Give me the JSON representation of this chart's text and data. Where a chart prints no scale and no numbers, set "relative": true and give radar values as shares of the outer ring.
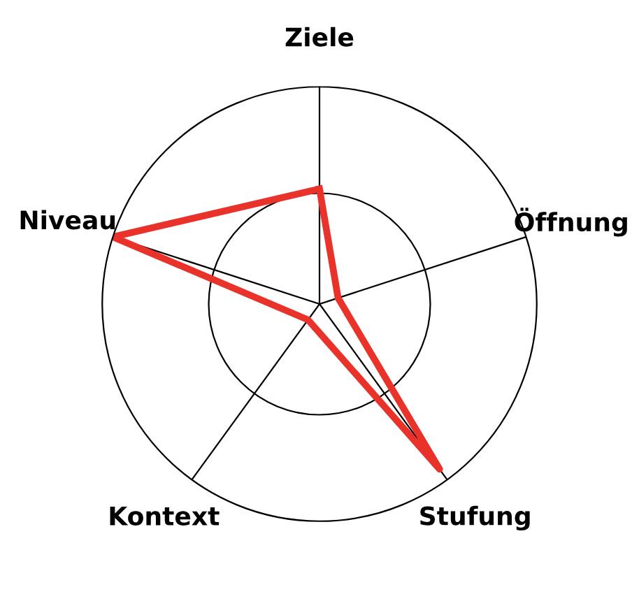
{
  "chart_data": {
    "type": "radar",
    "relative": true,
    "categories": [
      "Ziele",
      "Öffnung",
      "Stufung",
      "Kontext",
      "Niveau"
    ],
    "series": [
      {
        "color": "#e8322a",
        "values": [
          0.53,
          0.09,
          0.94,
          0.09,
          1.0
        ]
      }
    ],
    "grid": "x",
    "marker": "none",
    "line_style": "solid"
  }
}
